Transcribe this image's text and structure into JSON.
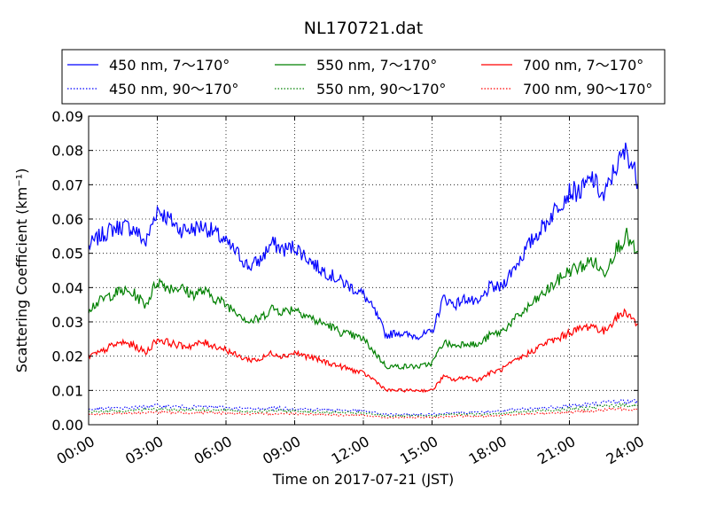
{
  "chart_data": {
    "type": "line",
    "title": "NL170721.dat",
    "xlabel": "Time on 2017-07-21 (JST)",
    "ylabel": "Scattering Coefficient (km⁻¹)",
    "xlim": [
      "00:00",
      "24:00"
    ],
    "ylim": [
      0,
      0.09
    ],
    "x_ticks": [
      "00:00",
      "03:00",
      "06:00",
      "09:00",
      "12:00",
      "15:00",
      "18:00",
      "21:00",
      "24:00"
    ],
    "y_ticks": [
      "0.00",
      "0.01",
      "0.02",
      "0.03",
      "0.04",
      "0.05",
      "0.06",
      "0.07",
      "0.08",
      "0.09"
    ],
    "grid": true,
    "legend_position": "top (above plot, 3 columns)",
    "series": [
      {
        "name": "450 nm, 7～170°",
        "color": "#0000ff",
        "style": "solid",
        "x": [
          0,
          0.5,
          1,
          1.5,
          2,
          2.5,
          3,
          3.5,
          4,
          4.5,
          5,
          5.5,
          6,
          6.5,
          7,
          7.5,
          8,
          8.5,
          9,
          9.5,
          10,
          10.5,
          11,
          11.5,
          12,
          12.5,
          13,
          13.5,
          14,
          14.5,
          15,
          15.5,
          16,
          16.5,
          17,
          17.5,
          18,
          18.5,
          19,
          19.5,
          20,
          20.5,
          21,
          21.5,
          22,
          22.5,
          23,
          23.5,
          24
        ],
        "y": [
          0.052,
          0.055,
          0.057,
          0.058,
          0.057,
          0.053,
          0.063,
          0.06,
          0.057,
          0.057,
          0.058,
          0.056,
          0.053,
          0.05,
          0.046,
          0.048,
          0.053,
          0.051,
          0.052,
          0.049,
          0.046,
          0.044,
          0.042,
          0.04,
          0.038,
          0.033,
          0.026,
          0.027,
          0.026,
          0.026,
          0.027,
          0.037,
          0.035,
          0.037,
          0.035,
          0.04,
          0.04,
          0.045,
          0.05,
          0.055,
          0.059,
          0.064,
          0.068,
          0.068,
          0.072,
          0.066,
          0.075,
          0.08,
          0.071
        ]
      },
      {
        "name": "550 nm, 7～170°",
        "color": "#008000",
        "style": "solid",
        "x": [
          0,
          0.5,
          1,
          1.5,
          2,
          2.5,
          3,
          3.5,
          4,
          4.5,
          5,
          5.5,
          6,
          6.5,
          7,
          7.5,
          8,
          8.5,
          9,
          9.5,
          10,
          10.5,
          11,
          11.5,
          12,
          12.5,
          13,
          13.5,
          14,
          14.5,
          15,
          15.5,
          16,
          16.5,
          17,
          17.5,
          18,
          18.5,
          19,
          19.5,
          20,
          20.5,
          21,
          21.5,
          22,
          22.5,
          23,
          23.5,
          24
        ],
        "y": [
          0.034,
          0.036,
          0.038,
          0.039,
          0.038,
          0.035,
          0.042,
          0.04,
          0.04,
          0.038,
          0.039,
          0.037,
          0.035,
          0.033,
          0.03,
          0.031,
          0.034,
          0.033,
          0.034,
          0.032,
          0.03,
          0.029,
          0.027,
          0.026,
          0.025,
          0.021,
          0.017,
          0.017,
          0.017,
          0.017,
          0.018,
          0.024,
          0.023,
          0.024,
          0.023,
          0.026,
          0.027,
          0.03,
          0.033,
          0.036,
          0.039,
          0.042,
          0.045,
          0.046,
          0.048,
          0.044,
          0.051,
          0.055,
          0.049
        ]
      },
      {
        "name": "700 nm, 7～170°",
        "color": "#ff0000",
        "style": "solid",
        "x": [
          0,
          0.5,
          1,
          1.5,
          2,
          2.5,
          3,
          3.5,
          4,
          4.5,
          5,
          5.5,
          6,
          6.5,
          7,
          7.5,
          8,
          8.5,
          9,
          9.5,
          10,
          10.5,
          11,
          11.5,
          12,
          12.5,
          13,
          13.5,
          14,
          14.5,
          15,
          15.5,
          16,
          16.5,
          17,
          17.5,
          18,
          18.5,
          19,
          19.5,
          20,
          20.5,
          21,
          21.5,
          22,
          22.5,
          23,
          23.5,
          24
        ],
        "y": [
          0.02,
          0.021,
          0.023,
          0.024,
          0.023,
          0.021,
          0.025,
          0.024,
          0.023,
          0.023,
          0.024,
          0.023,
          0.022,
          0.02,
          0.019,
          0.019,
          0.021,
          0.02,
          0.021,
          0.02,
          0.019,
          0.018,
          0.017,
          0.016,
          0.015,
          0.013,
          0.01,
          0.01,
          0.01,
          0.01,
          0.01,
          0.014,
          0.013,
          0.014,
          0.013,
          0.015,
          0.016,
          0.018,
          0.02,
          0.022,
          0.024,
          0.025,
          0.027,
          0.028,
          0.029,
          0.027,
          0.031,
          0.033,
          0.029
        ]
      },
      {
        "name": "450 nm, 90～170°",
        "color": "#0000ff",
        "style": "dotted",
        "x": [
          0,
          1,
          2,
          3,
          4,
          5,
          6,
          7,
          8,
          9,
          10,
          11,
          12,
          13,
          14,
          15,
          16,
          17,
          18,
          19,
          20,
          21,
          22,
          23,
          24
        ],
        "y": [
          0.0045,
          0.0048,
          0.005,
          0.0055,
          0.0052,
          0.0052,
          0.005,
          0.0046,
          0.0048,
          0.0047,
          0.0044,
          0.0042,
          0.004,
          0.003,
          0.003,
          0.003,
          0.0036,
          0.0035,
          0.004,
          0.0045,
          0.005,
          0.0055,
          0.006,
          0.0068,
          0.0068
        ]
      },
      {
        "name": "550 nm, 90～170°",
        "color": "#008000",
        "style": "dotted",
        "x": [
          0,
          1,
          2,
          3,
          4,
          5,
          6,
          7,
          8,
          9,
          10,
          11,
          12,
          13,
          14,
          15,
          16,
          17,
          18,
          19,
          20,
          21,
          22,
          23,
          24
        ],
        "y": [
          0.0038,
          0.004,
          0.0042,
          0.0046,
          0.0044,
          0.0044,
          0.0042,
          0.0039,
          0.004,
          0.004,
          0.0037,
          0.0035,
          0.0034,
          0.0026,
          0.0026,
          0.0026,
          0.0031,
          0.003,
          0.0034,
          0.0038,
          0.0042,
          0.0046,
          0.005,
          0.0057,
          0.0057
        ]
      },
      {
        "name": "700 nm, 90～170°",
        "color": "#ff0000",
        "style": "dotted",
        "x": [
          0,
          1,
          2,
          3,
          4,
          5,
          6,
          7,
          8,
          9,
          10,
          11,
          12,
          13,
          14,
          15,
          16,
          17,
          18,
          19,
          20,
          21,
          22,
          23,
          24
        ],
        "y": [
          0.003,
          0.0032,
          0.0034,
          0.0037,
          0.0035,
          0.0035,
          0.0034,
          0.0031,
          0.0032,
          0.0032,
          0.003,
          0.0028,
          0.0027,
          0.0021,
          0.0021,
          0.0021,
          0.0025,
          0.0024,
          0.0027,
          0.003,
          0.0034,
          0.0037,
          0.004,
          0.0046,
          0.0046
        ]
      }
    ]
  }
}
